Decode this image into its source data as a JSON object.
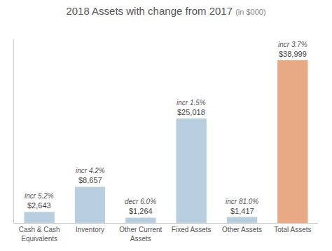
{
  "chart_data": {
    "type": "bar",
    "title": "2018 Assets with change from 2017",
    "subtitle": "(in $000)",
    "categories": [
      "Cash & Cash\nEquivalents",
      "Inventory",
      "Other Current\nAssets",
      "Fixed Assets",
      "Other Assets",
      "Total Assets"
    ],
    "values": [
      2643,
      8657,
      1264,
      25018,
      1417,
      38999
    ],
    "value_labels": [
      "$2,643",
      "$8,657",
      "$1,264",
      "$25,018",
      "$1,417",
      "$38,999"
    ],
    "annotations": [
      "incr 5.2%",
      "incr 4.2%",
      "decr 6.0%",
      "incr 1.5%",
      "incr 81.0%",
      "incr 3.7%"
    ],
    "colors": [
      "#b8cfe0",
      "#b8cfe0",
      "#b8cfe0",
      "#b8cfe0",
      "#b8cfe0",
      "#e8aa84"
    ],
    "ylim": [
      0,
      44000
    ],
    "grid": false,
    "data_labels": true,
    "tick_labels": "x"
  }
}
